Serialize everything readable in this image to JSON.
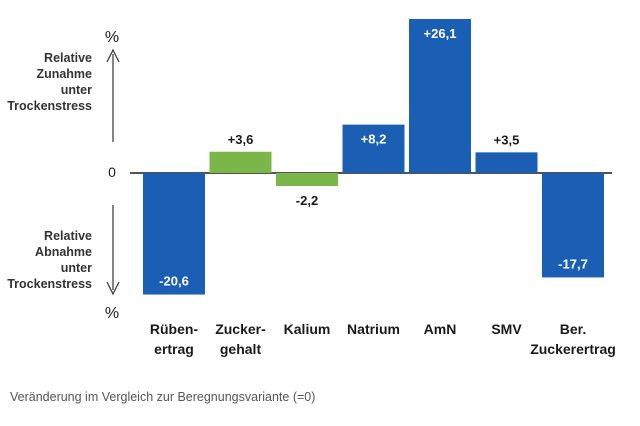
{
  "chart_data": {
    "type": "bar",
    "categories": [
      "Rüben- ertrag",
      "Zucker- gehalt",
      "Kalium",
      "Natrium",
      "AmN",
      "SMV",
      "Ber. Zuckerertrag"
    ],
    "category_lines": [
      [
        "Rüben-",
        "ertrag"
      ],
      [
        "Zucker-",
        "gehalt"
      ],
      [
        "Kalium"
      ],
      [
        "Natrium"
      ],
      [
        "AmN"
      ],
      [
        "SMV"
      ],
      [
        "Ber.",
        "Zuckerertrag"
      ]
    ],
    "values": [
      -20.6,
      3.6,
      -2.2,
      8.2,
      26.1,
      3.5,
      -17.7
    ],
    "value_labels": [
      "-20,6",
      "+3,6",
      "-2,2",
      "+8,2",
      "+26,1",
      "+3,5",
      "-17,7"
    ],
    "bar_colors": [
      "#1b5fb4",
      "#7ab648",
      "#7ab648",
      "#1b5fb4",
      "#1b5fb4",
      "#1b5fb4",
      "#1b5fb4"
    ],
    "zero_label": "0",
    "unit_top": "%",
    "unit_bottom": "%",
    "axis_top_label": [
      "Relative",
      "Zunahme",
      "unter",
      "Trockenstress"
    ],
    "axis_bottom_label": [
      "Relative",
      "Abnahme",
      "unter",
      "Trockenstress"
    ],
    "ylim": [
      -21,
      26.1
    ],
    "grid": false,
    "colors": {
      "blue": "#1b5fb4",
      "green": "#7ab648"
    }
  },
  "caption": "Veränderung im Vergleich zur Beregnungsvariante (=0)"
}
